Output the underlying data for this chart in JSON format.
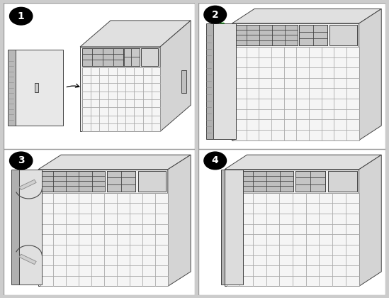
{
  "bg_color": "#cccccc",
  "panel_bg": "#ffffff",
  "line_color": "#444444",
  "chassis_face": "#f0f0f0",
  "chassis_top": "#e0e0e0",
  "chassis_right": "#d8d8d8",
  "fan_color": "#c8c8c8",
  "module_face": "#e4e4e4",
  "module_edge": "#b0b0b0",
  "green_color": "#00aa00",
  "slot_line": "#888888",
  "step_labels": [
    "1",
    "2",
    "3",
    "4"
  ]
}
